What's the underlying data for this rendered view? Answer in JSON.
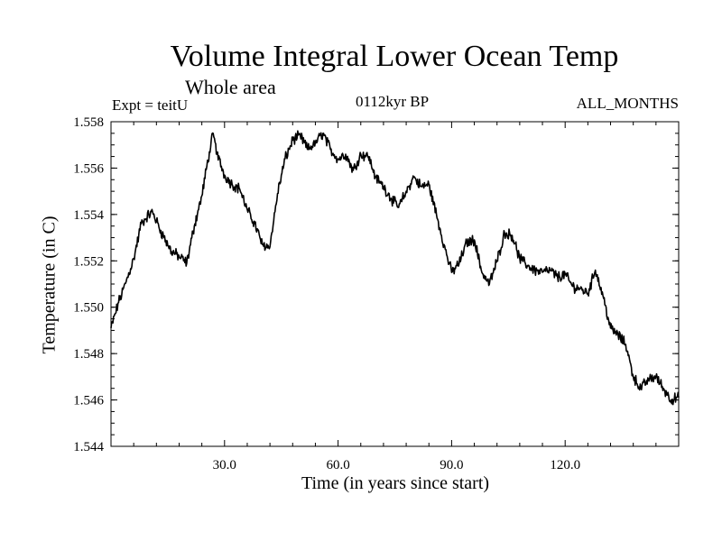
{
  "chart_data": {
    "type": "line",
    "title": "Volume Integral Lower Ocean Temp",
    "subtitle": "Whole area",
    "annotations": {
      "experiment": "Expt = teitU",
      "period": "0112kyr BP",
      "months": "ALL_MONTHS"
    },
    "xlabel": "Time (in years since start)",
    "ylabel": "Temperature (in C)",
    "xlim": [
      0,
      150
    ],
    "ylim": [
      1.544,
      1.558
    ],
    "xticks": [
      30,
      60,
      90,
      120
    ],
    "xtick_labels": [
      "30.0",
      "60.0",
      "90.0",
      "120.0"
    ],
    "yticks": [
      1.544,
      1.546,
      1.548,
      1.55,
      1.552,
      1.554,
      1.556,
      1.558
    ],
    "ytick_labels": [
      "1.544",
      "1.546",
      "1.548",
      "1.550",
      "1.552",
      "1.554",
      "1.556",
      "1.558"
    ],
    "series": [
      {
        "name": "Volume Integral Lower Ocean Temp",
        "x": [
          0,
          2,
          4,
          6,
          8,
          10,
          11,
          12,
          14,
          16,
          18,
          20,
          22,
          24,
          26,
          27,
          28,
          30,
          32,
          34,
          36,
          38,
          40,
          42,
          44,
          46,
          48,
          50,
          52,
          54,
          56,
          58,
          60,
          62,
          64,
          66,
          68,
          70,
          72,
          74,
          76,
          78,
          80,
          82,
          84,
          86,
          88,
          90,
          92,
          94,
          96,
          98,
          100,
          102,
          104,
          106,
          108,
          110,
          112,
          114,
          116,
          118,
          120,
          122,
          124,
          126,
          128,
          130,
          132,
          134,
          136,
          138,
          140,
          142,
          144,
          146,
          148,
          150
        ],
        "values": [
          1.5491,
          1.5502,
          1.5511,
          1.5521,
          1.5536,
          1.554,
          1.5541,
          1.5537,
          1.553,
          1.5524,
          1.5522,
          1.5519,
          1.5535,
          1.5548,
          1.5567,
          1.5575,
          1.5566,
          1.5557,
          1.5553,
          1.5551,
          1.5542,
          1.5536,
          1.5527,
          1.5526,
          1.5549,
          1.5564,
          1.5572,
          1.5574,
          1.5568,
          1.5571,
          1.5575,
          1.5568,
          1.5564,
          1.5566,
          1.5559,
          1.5566,
          1.5565,
          1.5556,
          1.5552,
          1.5547,
          1.5543,
          1.555,
          1.5556,
          1.5552,
          1.5553,
          1.554,
          1.5527,
          1.5515,
          1.5519,
          1.5528,
          1.5529,
          1.5515,
          1.551,
          1.552,
          1.5532,
          1.5531,
          1.5521,
          1.5518,
          1.5516,
          1.5515,
          1.5516,
          1.5513,
          1.5514,
          1.5509,
          1.5508,
          1.5506,
          1.5516,
          1.5505,
          1.5491,
          1.5488,
          1.5484,
          1.547,
          1.5465,
          1.5469,
          1.547,
          1.5465,
          1.546,
          1.5461
        ]
      }
    ]
  }
}
